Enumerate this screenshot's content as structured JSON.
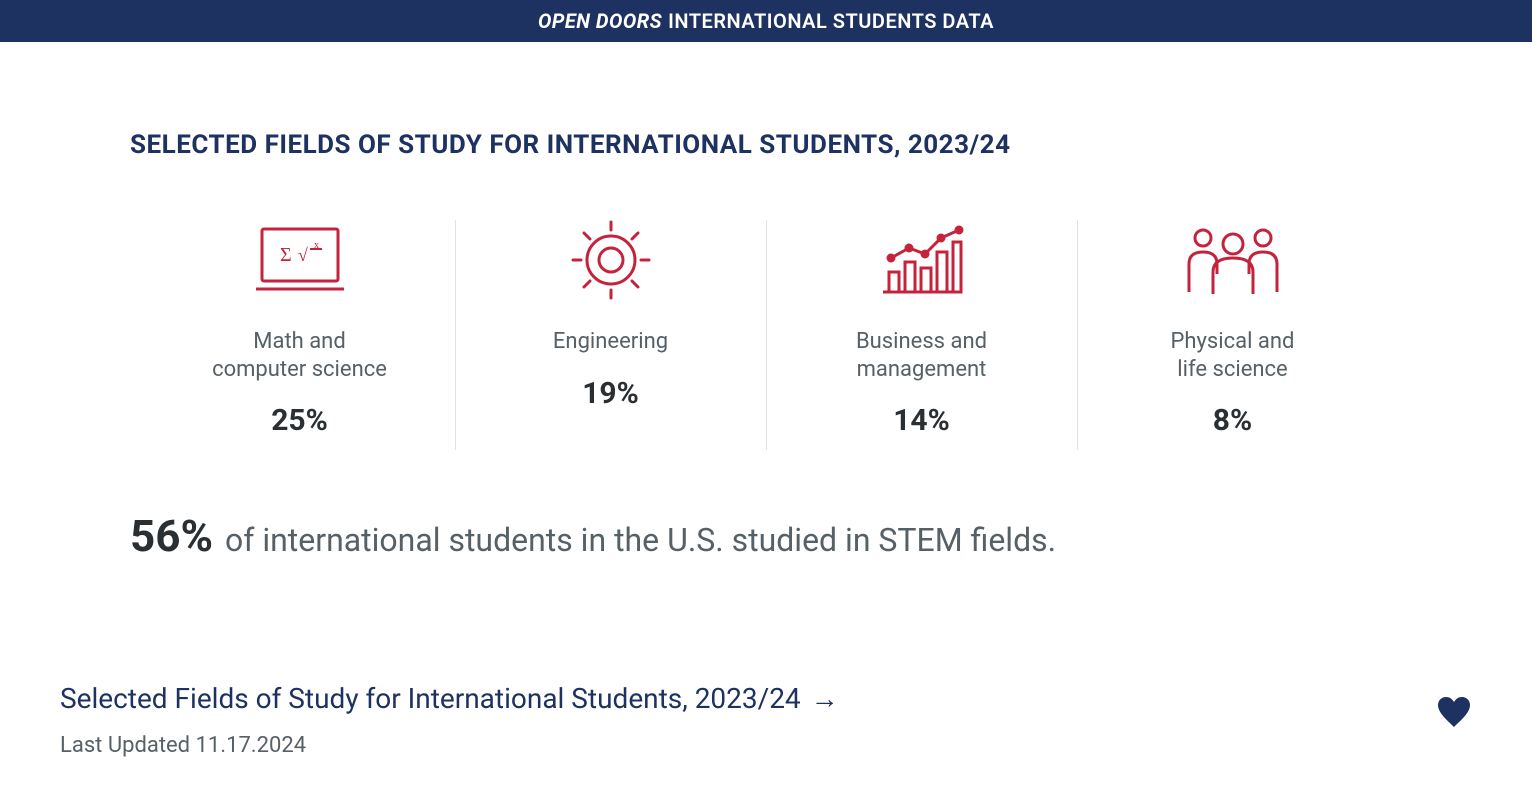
{
  "colors": {
    "banner_bg": "#1e3262",
    "banner_text": "#ffffff",
    "title": "#1e3262",
    "icon": "#c4233b",
    "label_gray": "#566067",
    "pct_dark": "#2a2f33",
    "stem_pct": "#2a2f33",
    "stem_text": "#566067",
    "link": "#1e3262",
    "updated": "#566067",
    "heart": "#1e3262",
    "divider": "#e2e2e2"
  },
  "typography": {
    "banner_fontsize": 20,
    "title_fontsize": 26,
    "label_fontsize": 22,
    "pct_fontsize": 30,
    "stem_pct_fontsize": 44,
    "stem_text_fontsize": 32,
    "link_fontsize": 28,
    "updated_fontsize": 22
  },
  "banner": {
    "italic": "OPEN DOORS",
    "rest": "INTERNATIONAL STUDENTS DATA"
  },
  "title": "SELECTED FIELDS OF STUDY FOR INTERNATIONAL STUDENTS, 2023/24",
  "fields": [
    {
      "icon": "computer",
      "label": "Math and\ncomputer science",
      "pct": "25%"
    },
    {
      "icon": "gear",
      "label": "Engineering",
      "pct": "19%"
    },
    {
      "icon": "chart",
      "label": "Business and\nmanagement",
      "pct": "14%"
    },
    {
      "icon": "people",
      "label": "Physical and\nlife science",
      "pct": "8%"
    }
  ],
  "stem": {
    "pct": "56%",
    "text": "of international students in the U.S. studied in STEM fields."
  },
  "link": {
    "text": "Selected Fields of Study for International Students, 2023/24",
    "arrow": "→"
  },
  "updated": "Last Updated 11.17.2024"
}
